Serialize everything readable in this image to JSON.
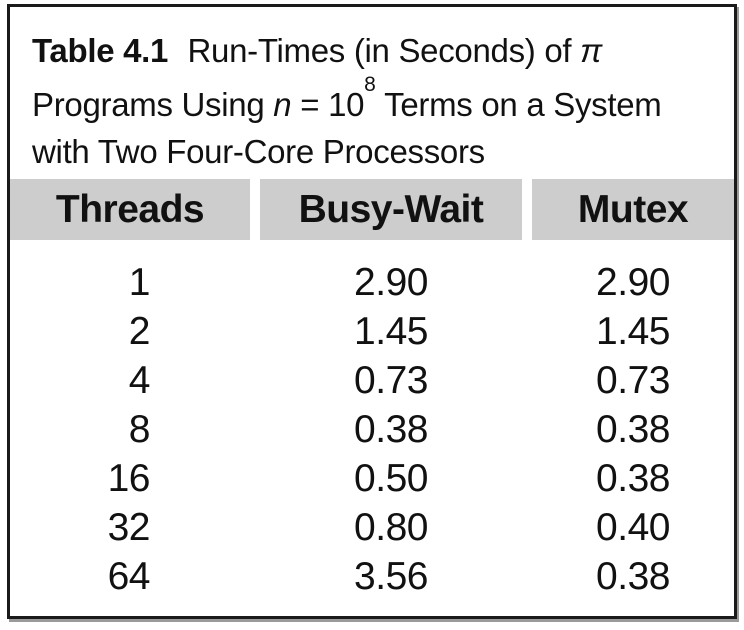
{
  "title": {
    "label": "Table 4.1",
    "line1_text": "Run-Times (in Seconds) of",
    "pi": "π",
    "line2_pre": "Programs Using",
    "n_var": "n",
    "equals": "=",
    "pow_base": "10",
    "pow_exp": "8",
    "line2_post": "Terms on a System",
    "line3": "with Two Four-Core Processors"
  },
  "table": {
    "columns": [
      "Threads",
      "Busy-Wait",
      "Mutex"
    ],
    "rows": [
      {
        "threads": "1",
        "busy_wait": "2.90",
        "mutex": "2.90"
      },
      {
        "threads": "2",
        "busy_wait": "1.45",
        "mutex": "1.45"
      },
      {
        "threads": "4",
        "busy_wait": "0.73",
        "mutex": "0.73"
      },
      {
        "threads": "8",
        "busy_wait": "0.38",
        "mutex": "0.38"
      },
      {
        "threads": "16",
        "busy_wait": "0.50",
        "mutex": "0.38"
      },
      {
        "threads": "32",
        "busy_wait": "0.80",
        "mutex": "0.40"
      },
      {
        "threads": "64",
        "busy_wait": "3.56",
        "mutex": "0.38"
      }
    ]
  },
  "colors": {
    "header_bg": "#cdcdcd",
    "border": "#1a1a1a",
    "text": "#111111",
    "background": "#ffffff"
  }
}
